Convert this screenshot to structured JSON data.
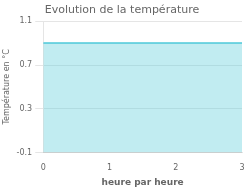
{
  "chart_data": {
    "type": "area",
    "title": "Evolution de la température",
    "xlabel": "heure par heure",
    "ylabel": "Température en °C",
    "x": [
      0,
      3
    ],
    "values": [
      0.9,
      0.9
    ],
    "color": "#4cc8d8",
    "xlim": [
      0,
      3
    ],
    "ylim": [
      -0.1,
      1.1
    ],
    "xticks": [
      0,
      1,
      2,
      3
    ],
    "yticks": [
      -0.1,
      0.3,
      0.7,
      1.1
    ],
    "grid": "y"
  }
}
